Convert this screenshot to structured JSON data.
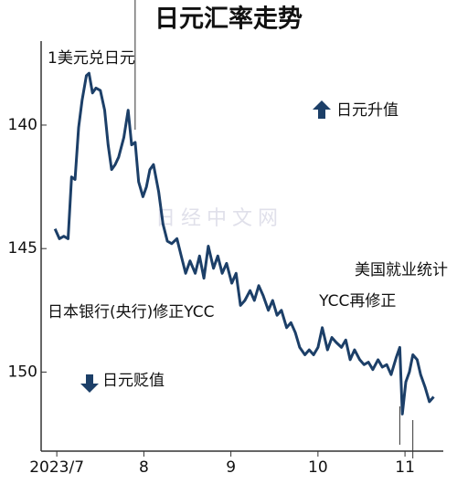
{
  "chart_data": {
    "type": "line",
    "title": "日元汇率走势",
    "y_label": "1美元兑日元",
    "x": [
      6.98,
      7.03,
      7.08,
      7.13,
      7.17,
      7.21,
      7.25,
      7.29,
      7.34,
      7.37,
      7.41,
      7.45,
      7.5,
      7.55,
      7.59,
      7.63,
      7.67,
      7.71,
      7.77,
      7.82,
      7.86,
      7.9,
      7.94,
      7.99,
      8.03,
      8.07,
      8.11,
      8.17,
      8.22,
      8.27,
      8.32,
      8.38,
      8.43,
      8.48,
      8.53,
      8.59,
      8.64,
      8.69,
      8.74,
      8.8,
      8.85,
      8.9,
      8.95,
      9.01,
      9.06,
      9.11,
      9.16,
      9.22,
      9.27,
      9.32,
      9.37,
      9.43,
      9.48,
      9.53,
      9.58,
      9.64,
      9.69,
      9.74,
      9.79,
      9.85,
      9.9,
      9.95,
      10.0,
      10.05,
      10.11,
      10.16,
      10.21,
      10.27,
      10.32,
      10.37,
      10.42,
      10.48,
      10.53,
      10.58,
      10.63,
      10.69,
      10.74,
      10.79,
      10.84,
      10.9,
      10.94,
      10.97,
      11.01,
      11.05,
      11.09,
      11.14,
      11.18,
      11.23,
      11.28,
      11.33
    ],
    "series": [
      {
        "color": "#1c3f68",
        "values": [
          144.2,
          144.6,
          144.5,
          144.6,
          142.1,
          142.2,
          140.1,
          139.0,
          138.0,
          137.9,
          138.7,
          138.5,
          138.6,
          139.4,
          140.8,
          141.8,
          141.6,
          141.3,
          140.5,
          139.4,
          140.8,
          140.7,
          142.3,
          142.9,
          142.5,
          141.8,
          141.6,
          142.7,
          144.0,
          144.7,
          144.8,
          144.6,
          145.3,
          146.0,
          145.5,
          146.0,
          145.3,
          146.2,
          144.9,
          145.8,
          145.3,
          146.0,
          145.6,
          146.4,
          146.0,
          147.3,
          147.1,
          146.7,
          147.1,
          146.5,
          146.9,
          147.5,
          147.1,
          147.7,
          147.5,
          148.2,
          148.0,
          148.4,
          149.0,
          149.3,
          149.1,
          149.3,
          149.0,
          148.2,
          149.1,
          148.6,
          148.8,
          149.0,
          148.7,
          149.5,
          149.1,
          149.5,
          149.7,
          149.6,
          149.9,
          149.5,
          149.8,
          149.7,
          150.1,
          149.4,
          149.0,
          151.7,
          150.4,
          150.0,
          149.3,
          149.5,
          150.1,
          150.6,
          151.2,
          151.0
        ]
      }
    ],
    "xlim": [
      6.82,
      11.44
    ],
    "xticks": [
      {
        "value": 7,
        "label": "2023/7"
      },
      8,
      9,
      10,
      11
    ],
    "ylim": [
      136.6,
      153.2
    ],
    "y_inverted": true,
    "yticks": [
      140,
      145,
      150
    ],
    "annotations": [
      {
        "text": "日本银行(央行)修正YCC",
        "x": 7.9
      },
      {
        "text": "YCC再修正",
        "x": 10.94
      },
      {
        "text": "美国就业统计",
        "x": 11.09
      }
    ],
    "up_note": "日元升值",
    "down_note": "日元贬值",
    "watermark": "日经中文网"
  }
}
